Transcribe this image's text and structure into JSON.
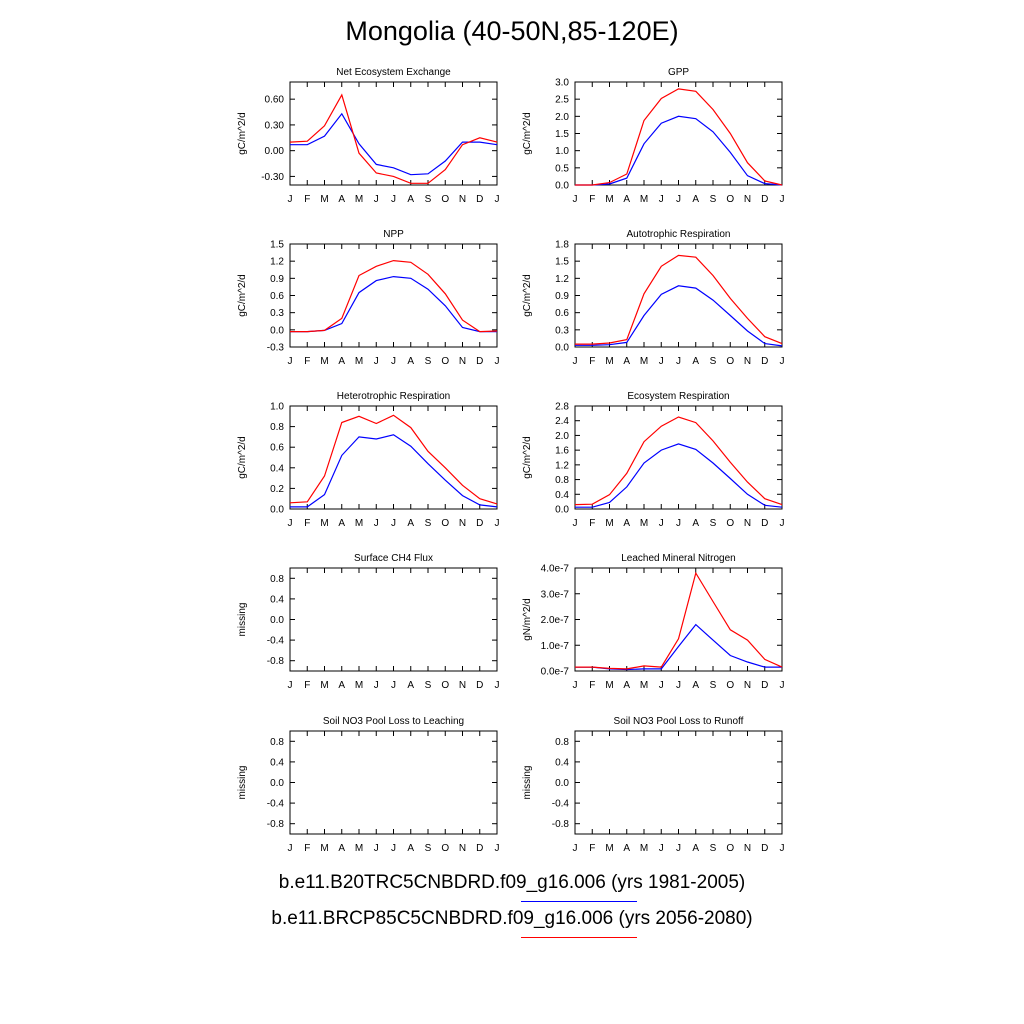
{
  "title": "Mongolia (40-50N,85-120E)",
  "colors": {
    "series1": "#0000ff",
    "series2": "#ff0000"
  },
  "legend": [
    {
      "label": "b.e11.B20TRC5CNBDRD.f09_g16.006 (yrs 1981-2005)",
      "color": "#0000ff"
    },
    {
      "label": "b.e11.BRCP85C5CNBDRD.f09_g16.006 (yrs 2056-2080)",
      "color": "#ff0000"
    }
  ],
  "chart_data": [
    {
      "type": "line",
      "title": "Net Ecosystem Exchange",
      "ylabel": "gC/m^2/d",
      "categories": [
        "J",
        "F",
        "M",
        "A",
        "M",
        "J",
        "J",
        "A",
        "S",
        "O",
        "N",
        "D",
        "J"
      ],
      "ylim": [
        -0.4,
        0.8
      ],
      "yticks": [
        -0.3,
        0.0,
        0.3,
        0.6
      ],
      "ytick_labels": [
        "-0.30",
        "0.00",
        "0.30",
        "0.60"
      ],
      "series": [
        {
          "values": [
            0.07,
            0.07,
            0.17,
            0.43,
            0.08,
            -0.16,
            -0.2,
            -0.28,
            -0.27,
            -0.12,
            0.1,
            0.1,
            0.07
          ]
        },
        {
          "values": [
            0.1,
            0.11,
            0.29,
            0.65,
            -0.03,
            -0.26,
            -0.3,
            -0.38,
            -0.38,
            -0.22,
            0.07,
            0.15,
            0.1
          ]
        }
      ]
    },
    {
      "type": "line",
      "title": "GPP",
      "ylabel": "gC/m^2/d",
      "categories": [
        "J",
        "F",
        "M",
        "A",
        "M",
        "J",
        "J",
        "A",
        "S",
        "O",
        "N",
        "D",
        "J"
      ],
      "ylim": [
        0,
        3
      ],
      "yticks": [
        0,
        0.5,
        1,
        1.5,
        2,
        2.5,
        3
      ],
      "ytick_labels": [
        "0.0",
        "0.5",
        "1.0",
        "1.5",
        "2.0",
        "2.5",
        "3.0"
      ],
      "series": [
        {
          "values": [
            0.0,
            0.0,
            0.03,
            0.2,
            1.2,
            1.8,
            2.0,
            1.93,
            1.55,
            0.95,
            0.27,
            0.04,
            0.0
          ]
        },
        {
          "values": [
            0.0,
            0.0,
            0.07,
            0.32,
            1.88,
            2.52,
            2.8,
            2.73,
            2.2,
            1.5,
            0.65,
            0.12,
            0.0
          ]
        }
      ]
    },
    {
      "type": "line",
      "title": "NPP",
      "ylabel": "gC/m^2/d",
      "categories": [
        "J",
        "F",
        "M",
        "A",
        "M",
        "J",
        "J",
        "A",
        "S",
        "O",
        "N",
        "D",
        "J"
      ],
      "ylim": [
        -0.3,
        1.5
      ],
      "yticks": [
        -0.3,
        0.0,
        0.3,
        0.6,
        0.9,
        1.2,
        1.5
      ],
      "ytick_labels": [
        "-0.3",
        "0.0",
        "0.3",
        "0.6",
        "0.9",
        "1.2",
        "1.5"
      ],
      "series": [
        {
          "values": [
            -0.03,
            -0.03,
            -0.01,
            0.11,
            0.65,
            0.86,
            0.93,
            0.9,
            0.71,
            0.42,
            0.04,
            -0.03,
            -0.03
          ]
        },
        {
          "values": [
            -0.03,
            -0.03,
            -0.01,
            0.2,
            0.95,
            1.11,
            1.21,
            1.18,
            0.97,
            0.63,
            0.17,
            -0.03,
            -0.02
          ]
        }
      ]
    },
    {
      "type": "line",
      "title": "Autotrophic Respiration",
      "ylabel": "gC/m^2/d",
      "categories": [
        "J",
        "F",
        "M",
        "A",
        "M",
        "J",
        "J",
        "A",
        "S",
        "O",
        "N",
        "D",
        "J"
      ],
      "ylim": [
        0,
        1.8
      ],
      "yticks": [
        0,
        0.3,
        0.6,
        0.9,
        1.2,
        1.5,
        1.8
      ],
      "ytick_labels": [
        "0.0",
        "0.3",
        "0.6",
        "0.9",
        "1.2",
        "1.5",
        "1.8"
      ],
      "series": [
        {
          "values": [
            0.03,
            0.03,
            0.04,
            0.08,
            0.55,
            0.92,
            1.07,
            1.03,
            0.82,
            0.55,
            0.28,
            0.06,
            0.02
          ]
        },
        {
          "values": [
            0.05,
            0.05,
            0.07,
            0.13,
            0.93,
            1.41,
            1.6,
            1.57,
            1.25,
            0.85,
            0.5,
            0.18,
            0.06
          ]
        }
      ]
    },
    {
      "type": "line",
      "title": "Heterotrophic Respiration",
      "ylabel": "gC/m^2/d",
      "categories": [
        "J",
        "F",
        "M",
        "A",
        "M",
        "J",
        "J",
        "A",
        "S",
        "O",
        "N",
        "D",
        "J"
      ],
      "ylim": [
        0,
        1.0
      ],
      "yticks": [
        0,
        0.2,
        0.4,
        0.6,
        0.8,
        1.0
      ],
      "ytick_labels": [
        "0.0",
        "0.2",
        "0.4",
        "0.6",
        "0.8",
        "1.0"
      ],
      "series": [
        {
          "values": [
            0.02,
            0.02,
            0.14,
            0.52,
            0.7,
            0.68,
            0.72,
            0.61,
            0.44,
            0.28,
            0.13,
            0.04,
            0.02
          ]
        },
        {
          "values": [
            0.06,
            0.07,
            0.32,
            0.84,
            0.9,
            0.83,
            0.91,
            0.79,
            0.56,
            0.4,
            0.23,
            0.1,
            0.05
          ]
        }
      ]
    },
    {
      "type": "line",
      "title": "Ecosystem Respiration",
      "ylabel": "gC/m^2/d",
      "categories": [
        "J",
        "F",
        "M",
        "A",
        "M",
        "J",
        "J",
        "A",
        "S",
        "O",
        "N",
        "D",
        "J"
      ],
      "ylim": [
        0,
        2.8
      ],
      "yticks": [
        0,
        0.4,
        0.8,
        1.2,
        1.6,
        2.0,
        2.4,
        2.8
      ],
      "ytick_labels": [
        "0.0",
        "0.4",
        "0.8",
        "1.2",
        "1.6",
        "2.0",
        "2.4",
        "2.8"
      ],
      "series": [
        {
          "values": [
            0.05,
            0.05,
            0.18,
            0.6,
            1.25,
            1.6,
            1.77,
            1.62,
            1.25,
            0.83,
            0.4,
            0.1,
            0.05
          ]
        },
        {
          "values": [
            0.12,
            0.13,
            0.39,
            0.97,
            1.83,
            2.25,
            2.5,
            2.35,
            1.85,
            1.27,
            0.73,
            0.28,
            0.12
          ]
        }
      ]
    },
    {
      "type": "line",
      "title": "Surface CH4 Flux",
      "ylabel": "missing",
      "categories": [
        "J",
        "F",
        "M",
        "A",
        "M",
        "J",
        "J",
        "A",
        "S",
        "O",
        "N",
        "D",
        "J"
      ],
      "ylim": [
        -1.0,
        1.0
      ],
      "yticks": [
        -0.8,
        -0.4,
        0.0,
        0.4,
        0.8
      ],
      "ytick_labels": [
        "-0.8",
        "-0.4",
        "0.0",
        "0.4",
        "0.8"
      ],
      "series": []
    },
    {
      "type": "line",
      "title": "Leached Mineral Nitrogen",
      "ylabel": "gN/m^2/d",
      "categories": [
        "J",
        "F",
        "M",
        "A",
        "M",
        "J",
        "J",
        "A",
        "S",
        "O",
        "N",
        "D",
        "J"
      ],
      "ylim": [
        0,
        4e-07
      ],
      "yticks": [
        0,
        1e-07,
        2e-07,
        3e-07,
        4e-07
      ],
      "ytick_labels": [
        "0.0e-7",
        "1.0e-7",
        "2.0e-7",
        "3.0e-7",
        "4.0e-7"
      ],
      "series": [
        {
          "values": [
            1.5e-08,
            1.5e-08,
            8e-09,
            6e-09,
            8e-09,
            8e-09,
            9.5e-08,
            1.8e-07,
            1.2e-07,
            6e-08,
            3.5e-08,
            1.5e-08,
            1.5e-08
          ]
        },
        {
          "values": [
            1.5e-08,
            1.5e-08,
            1e-08,
            8e-09,
            2e-08,
            1.5e-08,
            1.25e-07,
            3.8e-07,
            2.7e-07,
            1.6e-07,
            1.2e-07,
            4.5e-08,
            1.5e-08
          ]
        }
      ]
    },
    {
      "type": "line",
      "title": "Soil NO3 Pool Loss to Leaching",
      "ylabel": "missing",
      "categories": [
        "J",
        "F",
        "M",
        "A",
        "M",
        "J",
        "J",
        "A",
        "S",
        "O",
        "N",
        "D",
        "J"
      ],
      "ylim": [
        -1.0,
        1.0
      ],
      "yticks": [
        -0.8,
        -0.4,
        0.0,
        0.4,
        0.8
      ],
      "ytick_labels": [
        "-0.8",
        "-0.4",
        "0.0",
        "0.4",
        "0.8"
      ],
      "series": []
    },
    {
      "type": "line",
      "title": "Soil NO3 Pool Loss to Runoff",
      "ylabel": "missing",
      "categories": [
        "J",
        "F",
        "M",
        "A",
        "M",
        "J",
        "J",
        "A",
        "S",
        "O",
        "N",
        "D",
        "J"
      ],
      "ylim": [
        -1.0,
        1.0
      ],
      "yticks": [
        -0.8,
        -0.4,
        0.0,
        0.4,
        0.8
      ],
      "ytick_labels": [
        "-0.8",
        "-0.4",
        "0.0",
        "0.4",
        "0.8"
      ],
      "series": []
    }
  ]
}
